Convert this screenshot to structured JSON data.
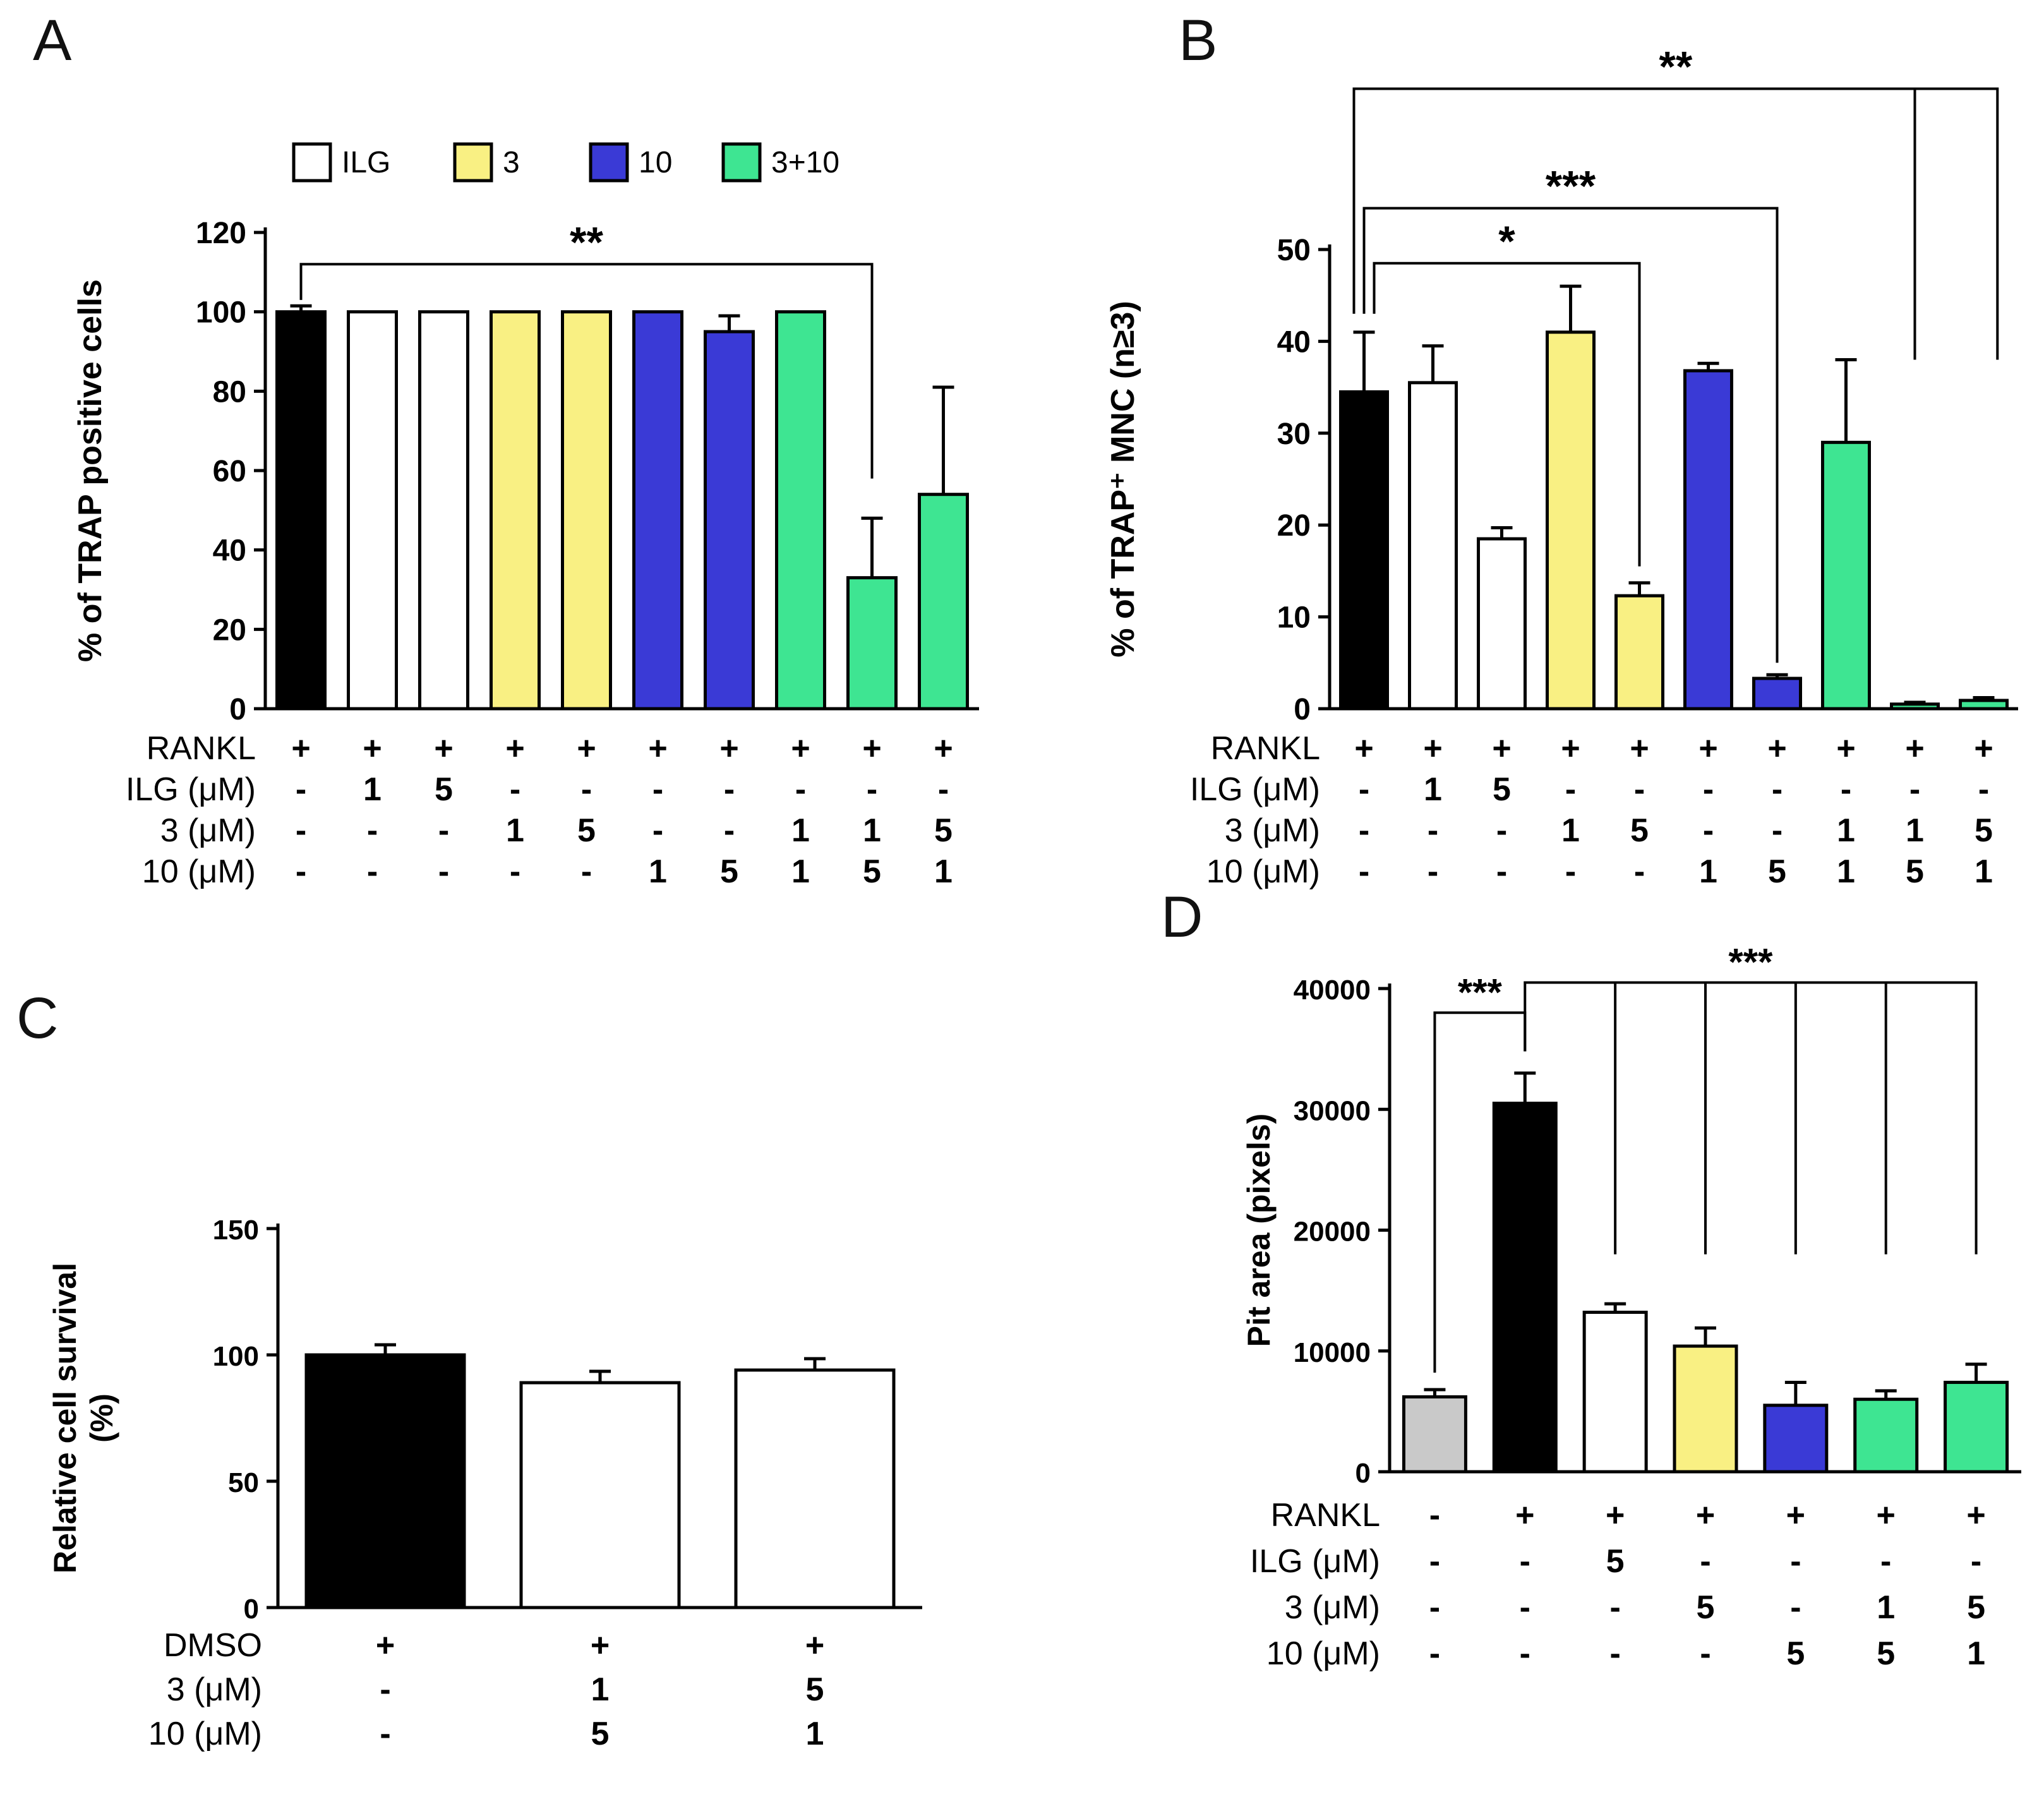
{
  "colors": {
    "black": "#000000",
    "white": "#ffffff",
    "yellow": "#f9f083",
    "blue": "#3a3ad6",
    "green": "#3ee592",
    "gray": "#c9c9c9"
  },
  "chart_data": [
    {
      "panel": "A",
      "type": "bar",
      "ylabel": "% of TRAP positive cells",
      "ylim": [
        0,
        120
      ],
      "yticks": [
        0,
        20,
        40,
        60,
        80,
        100,
        120
      ],
      "legend": [
        {
          "label": "ILG",
          "color": "white"
        },
        {
          "label": "3",
          "color": "yellow"
        },
        {
          "label": "10",
          "color": "blue"
        },
        {
          "label": "3+10",
          "color": "green"
        }
      ],
      "bars": [
        {
          "value": 100,
          "err": 1.5,
          "color": "black"
        },
        {
          "value": 100,
          "err": 0,
          "color": "white"
        },
        {
          "value": 100,
          "err": 0,
          "color": "white"
        },
        {
          "value": 100,
          "err": 0,
          "color": "yellow"
        },
        {
          "value": 100,
          "err": 0,
          "color": "yellow"
        },
        {
          "value": 100,
          "err": 0,
          "color": "blue"
        },
        {
          "value": 95,
          "err": 4,
          "color": "blue"
        },
        {
          "value": 100,
          "err": 0,
          "color": "green"
        },
        {
          "value": 33,
          "err": 15,
          "color": "green"
        },
        {
          "value": 54,
          "err": 27,
          "color": "green"
        }
      ],
      "significance": [
        {
          "label": "**",
          "x1": 0,
          "x2": 8,
          "y": 112,
          "d1": 103,
          "d2": 58
        }
      ],
      "xtable": [
        {
          "label": "RANKL",
          "values": [
            "+",
            "+",
            "+",
            "+",
            "+",
            "+",
            "+",
            "+",
            "+",
            "+"
          ]
        },
        {
          "label": "ILG (μM)",
          "values": [
            "-",
            "1",
            "5",
            "-",
            "-",
            "-",
            "-",
            "-",
            "-",
            "-"
          ]
        },
        {
          "label": "3 (μM)",
          "values": [
            "-",
            "-",
            "-",
            "1",
            "5",
            "-",
            "-",
            "1",
            "1",
            "5"
          ]
        },
        {
          "label": "10 (μM)",
          "values": [
            "-",
            "-",
            "-",
            "-",
            "-",
            "1",
            "5",
            "1",
            "5",
            "1"
          ]
        }
      ]
    },
    {
      "panel": "B",
      "type": "bar",
      "ylabel": "% of TRAP⁺ MNC (n≥3)",
      "ylim": [
        0,
        50
      ],
      "yticks": [
        0,
        10,
        20,
        30,
        40,
        50
      ],
      "bars": [
        {
          "value": 34.5,
          "err": 6.5,
          "color": "black"
        },
        {
          "value": 35.5,
          "err": 4,
          "color": "white"
        },
        {
          "value": 18.5,
          "err": 1.2,
          "color": "white"
        },
        {
          "value": 41,
          "err": 5,
          "color": "yellow"
        },
        {
          "value": 12.3,
          "err": 1.4,
          "color": "yellow"
        },
        {
          "value": 36.8,
          "err": 0.8,
          "color": "blue"
        },
        {
          "value": 3.3,
          "err": 0.4,
          "color": "blue"
        },
        {
          "value": 29,
          "err": 9,
          "color": "green"
        },
        {
          "value": 0.5,
          "err": 0.2,
          "color": "green"
        },
        {
          "value": 0.9,
          "err": 0.3,
          "color": "green"
        }
      ],
      "significance": [
        {
          "label": "*",
          "x1": 0,
          "x2": 4,
          "y": 48.5,
          "d1": 43,
          "d2": 15.5,
          "xoff1": 16
        },
        {
          "label": "***",
          "x1": 0,
          "x2": 6,
          "y": 54.5,
          "d1": 43,
          "d2": 5,
          "xoff1": 0
        },
        {
          "label": "**",
          "x1": 0,
          "x2": 9.2,
          "y": 67.5,
          "d1": 43,
          "d2": 38,
          "xoff1": -16,
          "drops": [
            {
              "x": 8,
              "to": 38
            }
          ]
        }
      ],
      "xtable": [
        {
          "label": "RANKL",
          "values": [
            "+",
            "+",
            "+",
            "+",
            "+",
            "+",
            "+",
            "+",
            "+",
            "+"
          ]
        },
        {
          "label": "ILG (μM)",
          "values": [
            "-",
            "1",
            "5",
            "-",
            "-",
            "-",
            "-",
            "-",
            "-",
            "-"
          ]
        },
        {
          "label": "3 (μM)",
          "values": [
            "-",
            "-",
            "-",
            "1",
            "5",
            "-",
            "-",
            "1",
            "1",
            "5"
          ]
        },
        {
          "label": "10 (μM)",
          "values": [
            "-",
            "-",
            "-",
            "-",
            "-",
            "1",
            "5",
            "1",
            "5",
            "1"
          ]
        }
      ]
    },
    {
      "panel": "C",
      "type": "bar",
      "ylabel": [
        "Relative cell survival",
        "(%)"
      ],
      "ylim": [
        0,
        150
      ],
      "yticks": [
        0,
        50,
        100,
        150
      ],
      "bars": [
        {
          "value": 100,
          "err": 4,
          "color": "black"
        },
        {
          "value": 89,
          "err": 4.5,
          "color": "white"
        },
        {
          "value": 94,
          "err": 4.5,
          "color": "white"
        }
      ],
      "significance": [],
      "xtable": [
        {
          "label": "DMSO",
          "values": [
            "+",
            "+",
            "+"
          ]
        },
        {
          "label": "3 (μM)",
          "values": [
            "-",
            "1",
            "5"
          ]
        },
        {
          "label": "10 (μM)",
          "values": [
            "-",
            "5",
            "1"
          ]
        }
      ]
    },
    {
      "panel": "D",
      "type": "bar",
      "ylabel": "Pit area (pixels)",
      "ylim": [
        0,
        40000
      ],
      "yticks": [
        0,
        10000,
        20000,
        30000,
        40000
      ],
      "bars": [
        {
          "value": 6200,
          "err": 600,
          "color": "gray"
        },
        {
          "value": 30500,
          "err": 2500,
          "color": "black"
        },
        {
          "value": 13200,
          "err": 700,
          "color": "white"
        },
        {
          "value": 10400,
          "err": 1500,
          "color": "yellow"
        },
        {
          "value": 5500,
          "err": 1900,
          "color": "blue"
        },
        {
          "value": 6000,
          "err": 700,
          "color": "green"
        },
        {
          "value": 7400,
          "err": 1500,
          "color": "green"
        }
      ],
      "significance": [
        {
          "label": "***",
          "x1": 0,
          "x2": 1,
          "y": 38000,
          "d1": 8200,
          "d2": 34800
        },
        {
          "label": "***",
          "x1": 1,
          "x2": 6,
          "y": 40500,
          "d1": 34800,
          "d2": 18000,
          "drops": [
            {
              "x": 2,
              "to": 18000
            },
            {
              "x": 3,
              "to": 18000
            },
            {
              "x": 4,
              "to": 18000
            },
            {
              "x": 5,
              "to": 18000
            }
          ]
        }
      ],
      "xtable": [
        {
          "label": "RANKL",
          "values": [
            "-",
            "+",
            "+",
            "+",
            "+",
            "+",
            "+"
          ]
        },
        {
          "label": "ILG (μM)",
          "values": [
            "-",
            "-",
            "5",
            "-",
            "-",
            "-",
            "-"
          ]
        },
        {
          "label": "3 (μM)",
          "values": [
            "-",
            "-",
            "-",
            "5",
            "-",
            "1",
            "5"
          ]
        },
        {
          "label": "10 (μM)",
          "values": [
            "-",
            "-",
            "-",
            "-",
            "5",
            "5",
            "1"
          ]
        }
      ]
    }
  ]
}
